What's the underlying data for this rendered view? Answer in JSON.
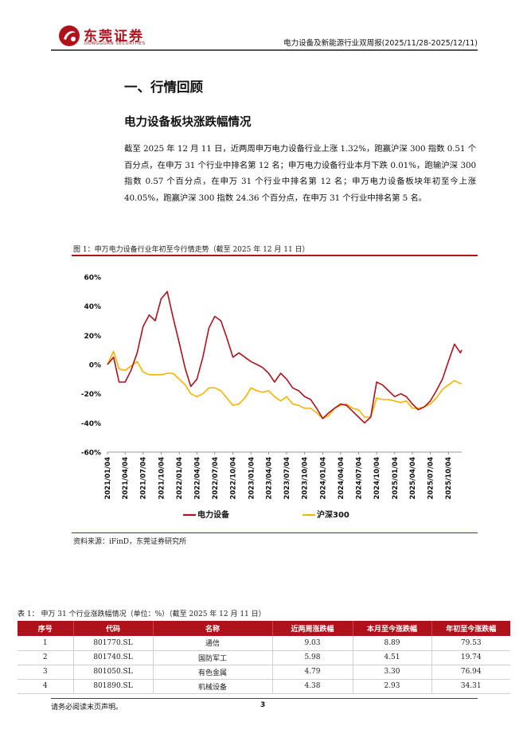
{
  "header": {
    "logo_cn": "东莞证券",
    "logo_en": "DONGGUAN SECURITIES",
    "report_title": "电力设备及新能源行业双周报(2025/11/28-2025/12/11)"
  },
  "section_heading": "一、行情回顾",
  "subsection_heading": "电力设备板块涨跌幅情况",
  "paragraph": "截至 2025 年 12 月 11 日，近两周申万电力设备行业上涨 1.32%，跑赢沪深 300 指数 0.51 个百分点，在申万 31 个行业中排名第 12 名；申万电力设备行业本月下跌 0.01%，跑输沪深 300 指数 0.57 个百分点，在申万 31 个行业中排名第 12 名；申万电力设备板块年初至今上涨 40.05%，跑赢沪深 300 指数 24.36 个百分点，在申万 31 个行业中排名第 5 名。",
  "figure": {
    "caption": "图 1：申万电力设备行业年初至今行情走势（截至 2025 年 12 月 11 日）",
    "source": "资料来源：iFinD，东莞证券研究所"
  },
  "chart_data": {
    "type": "line",
    "ylim": [
      -60,
      60
    ],
    "yticks": [
      "60%",
      "40%",
      "20%",
      "0%",
      "-20%",
      "-40%",
      "-60%"
    ],
    "xticks": [
      "2021/01/04",
      "2021/04/04",
      "2021/07/04",
      "2021/10/04",
      "2022/01/04",
      "2022/04/04",
      "2022/07/04",
      "2022/10/04",
      "2023/01/04",
      "2023/04/04",
      "2023/07/04",
      "2023/10/04",
      "2024/01/04",
      "2024/04/04",
      "2024/07/04",
      "2024/10/04",
      "2025/01/04",
      "2025/04/04",
      "2025/07/04",
      "2025/10/04"
    ],
    "x_dates": [
      "2021/01/04",
      "2021/02/04",
      "2021/03/04",
      "2021/04/04",
      "2021/05/04",
      "2021/06/04",
      "2021/07/04",
      "2021/08/04",
      "2021/09/04",
      "2021/10/04",
      "2021/11/04",
      "2021/12/04",
      "2022/01/04",
      "2022/02/04",
      "2022/03/04",
      "2022/04/04",
      "2022/05/04",
      "2022/06/04",
      "2022/07/04",
      "2022/08/04",
      "2022/09/04",
      "2022/10/04",
      "2022/11/04",
      "2022/12/04",
      "2023/01/04",
      "2023/02/04",
      "2023/03/04",
      "2023/04/04",
      "2023/05/04",
      "2023/06/04",
      "2023/07/04",
      "2023/08/04",
      "2023/09/04",
      "2023/10/04",
      "2023/11/04",
      "2023/12/04",
      "2024/01/04",
      "2024/02/04",
      "2024/03/04",
      "2024/04/04",
      "2024/05/04",
      "2024/06/04",
      "2024/07/04",
      "2024/08/04",
      "2024/09/04",
      "2024/10/04",
      "2024/11/04",
      "2024/12/04",
      "2025/01/04",
      "2025/02/04",
      "2025/03/04",
      "2025/04/04",
      "2025/05/04",
      "2025/06/04",
      "2025/07/04",
      "2025/08/04",
      "2025/09/04",
      "2025/10/04",
      "2025/11/04",
      "2025/12/04",
      "2025/12/11"
    ],
    "series": [
      {
        "name": "电力设备",
        "color": "#b0121b",
        "values": [
          0,
          5,
          -12,
          -12,
          -4,
          8,
          26,
          34,
          30,
          45,
          50,
          32,
          15,
          -3,
          -15,
          -10,
          5,
          25,
          33,
          30,
          18,
          5,
          8,
          5,
          2,
          0,
          -2,
          -6,
          -12,
          -6,
          -10,
          -16,
          -18,
          -22,
          -24,
          -30,
          -37,
          -33,
          -30,
          -27,
          -28,
          -32,
          -36,
          -40,
          -36,
          -12,
          -14,
          -18,
          -22,
          -20,
          -22,
          -27,
          -31,
          -29,
          -25,
          -18,
          -10,
          2,
          14,
          8,
          10
        ]
      },
      {
        "name": "沪深300",
        "color": "#f5b400",
        "values": [
          0,
          9,
          -3,
          -4,
          -1,
          2,
          -5,
          -7,
          -7,
          -7,
          -6,
          -6,
          -10,
          -14,
          -20,
          -22,
          -20,
          -16,
          -16,
          -18,
          -23,
          -28,
          -27,
          -23,
          -16,
          -18,
          -19,
          -18,
          -22,
          -25,
          -22,
          -27,
          -28,
          -30,
          -30,
          -33,
          -37,
          -35,
          -30,
          -28,
          -27,
          -30,
          -31,
          -36,
          -36,
          -23,
          -24,
          -24,
          -25,
          -26,
          -25,
          -30,
          -30,
          -29,
          -27,
          -23,
          -17,
          -14,
          -11,
          -13,
          -13
        ]
      }
    ],
    "legend_position": "bottom-center",
    "grid": false
  },
  "table": {
    "caption": "表 1：  申万 31 个行业涨跌幅情况（单位：%）（截至 2025 年 12 月 11 日）",
    "columns": [
      "序号",
      "代码",
      "名称",
      "近两周涨跌幅",
      "本月至今涨跌幅",
      "年初至今涨跌幅"
    ],
    "rows": [
      [
        "1",
        "801770.SL",
        "通信",
        "9.03",
        "8.89",
        "79.53"
      ],
      [
        "2",
        "801740.SL",
        "国防军工",
        "5.98",
        "4.51",
        "19.74"
      ],
      [
        "3",
        "801050.SL",
        "有色金属",
        "4.79",
        "3.30",
        "76.94"
      ],
      [
        "4",
        "801890.SL",
        "机械设备",
        "4.38",
        "2.93",
        "34.31"
      ]
    ]
  },
  "footer": {
    "disclaimer": "请务必阅读末页声明。",
    "page_number": "3"
  },
  "colors": {
    "brand_red": "#b0121b",
    "index_gold": "#f5b400"
  }
}
